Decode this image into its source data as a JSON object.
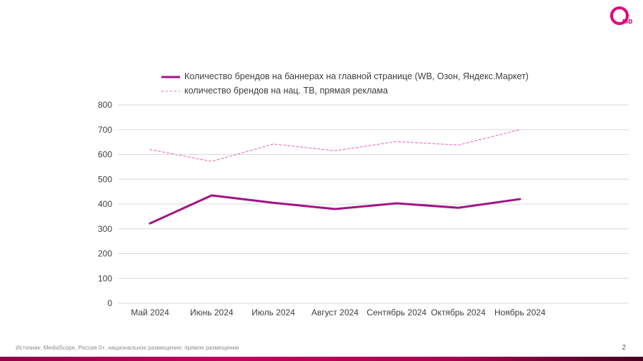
{
  "slide": {
    "source_note": "Источник: MediaScope, Россия 0+, национальное размещение, прямое размещение",
    "page_number": "2",
    "logo_name": "OMD"
  },
  "colors": {
    "series_banners": "#A21585",
    "series_tv": "#EE85C3",
    "gridline": "#D9D9D9",
    "axis_text": "#404040",
    "brand_magenta": "#E5007D"
  },
  "chart_data": {
    "type": "line",
    "title": "",
    "xlabel": "",
    "ylabel": "",
    "categories": [
      "Май 2024",
      "Июнь 2024",
      "Июль 2024",
      "Август 2024",
      "Сентябрь 2024",
      "Октябрь 2024",
      "Ноябрь 2024"
    ],
    "series": [
      {
        "name": "Количество брендов на баннерах на главной странице (WB, Озон, Яндекс.Маркет)",
        "values": [
          322,
          435,
          405,
          380,
          403,
          385,
          420
        ],
        "style": "solid",
        "color": "#A21585",
        "stroke_width": 3
      },
      {
        "name": "количество брендов на нац. ТВ, прямая реклама",
        "values": [
          620,
          572,
          642,
          615,
          652,
          638,
          700
        ],
        "style": "dashed",
        "color": "#EE85C3",
        "stroke_width": 1.3
      }
    ],
    "ylim": [
      0,
      800
    ],
    "ytick_step": 100,
    "grid": true,
    "legend_position": "top"
  }
}
